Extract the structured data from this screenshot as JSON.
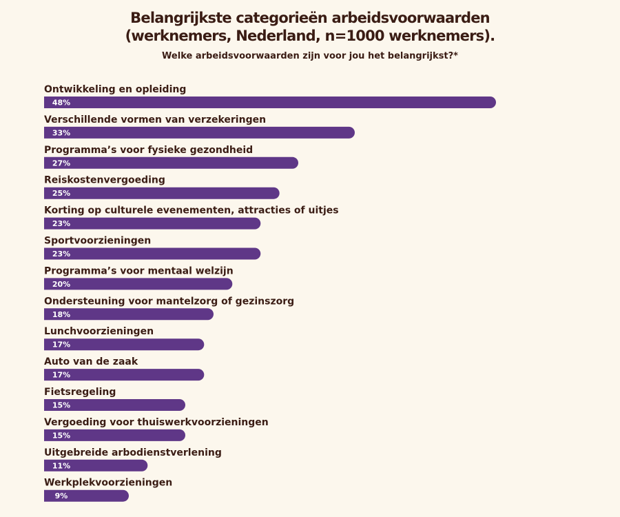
{
  "title_line1": "Belangrijkste categorieën arbeidsvoorwaarden",
  "title_line2": "(werknemers, Nederland, n=1000 werknemers).",
  "subtitle": "Welke arbeidsvoorwaarden zijn voor jou het belangrijkst?*",
  "colors": {
    "background": "#fcf7ed",
    "bar": "#5f3787",
    "text": "#3a1c14",
    "bar_label": "#ffffff"
  },
  "chart_data": {
    "type": "bar",
    "orientation": "horizontal",
    "title": "Belangrijkste categorieën arbeidsvoorwaarden (werknemers, Nederland, n=1000 werknemers).",
    "subtitle": "Welke arbeidsvoorwaarden zijn voor jou het belangrijkst?*",
    "categories": [
      "Ontwikkeling en opleiding",
      "Verschillende vormen van verzekeringen",
      "Programma’s voor fysieke gezondheid",
      "Reiskostenvergoeding",
      "Korting op culturele evenementen, attracties of uitjes",
      "Sportvoorzieningen",
      "Programma’s voor mentaal welzijn",
      "Ondersteuning voor mantelzorg of gezinszorg",
      "Lunchvoorzieningen",
      "Auto van de zaak",
      "Fietsregeling",
      "Vergoeding voor thuiswerkvoorzieningen",
      "Uitgebreide arbodienstverlening",
      "Werkplekvoorzieningen"
    ],
    "values": [
      48,
      33,
      27,
      25,
      23,
      23,
      20,
      18,
      17,
      17,
      15,
      15,
      11,
      9
    ],
    "value_labels": [
      "48%",
      "33%",
      "27%",
      "25%",
      "23%",
      "23%",
      "20%",
      "18%",
      "17%",
      "17%",
      "15%",
      "15%",
      "11%",
      "9%"
    ],
    "unit": "%",
    "xlim": [
      0,
      48
    ],
    "grid": false,
    "legend": "none"
  }
}
